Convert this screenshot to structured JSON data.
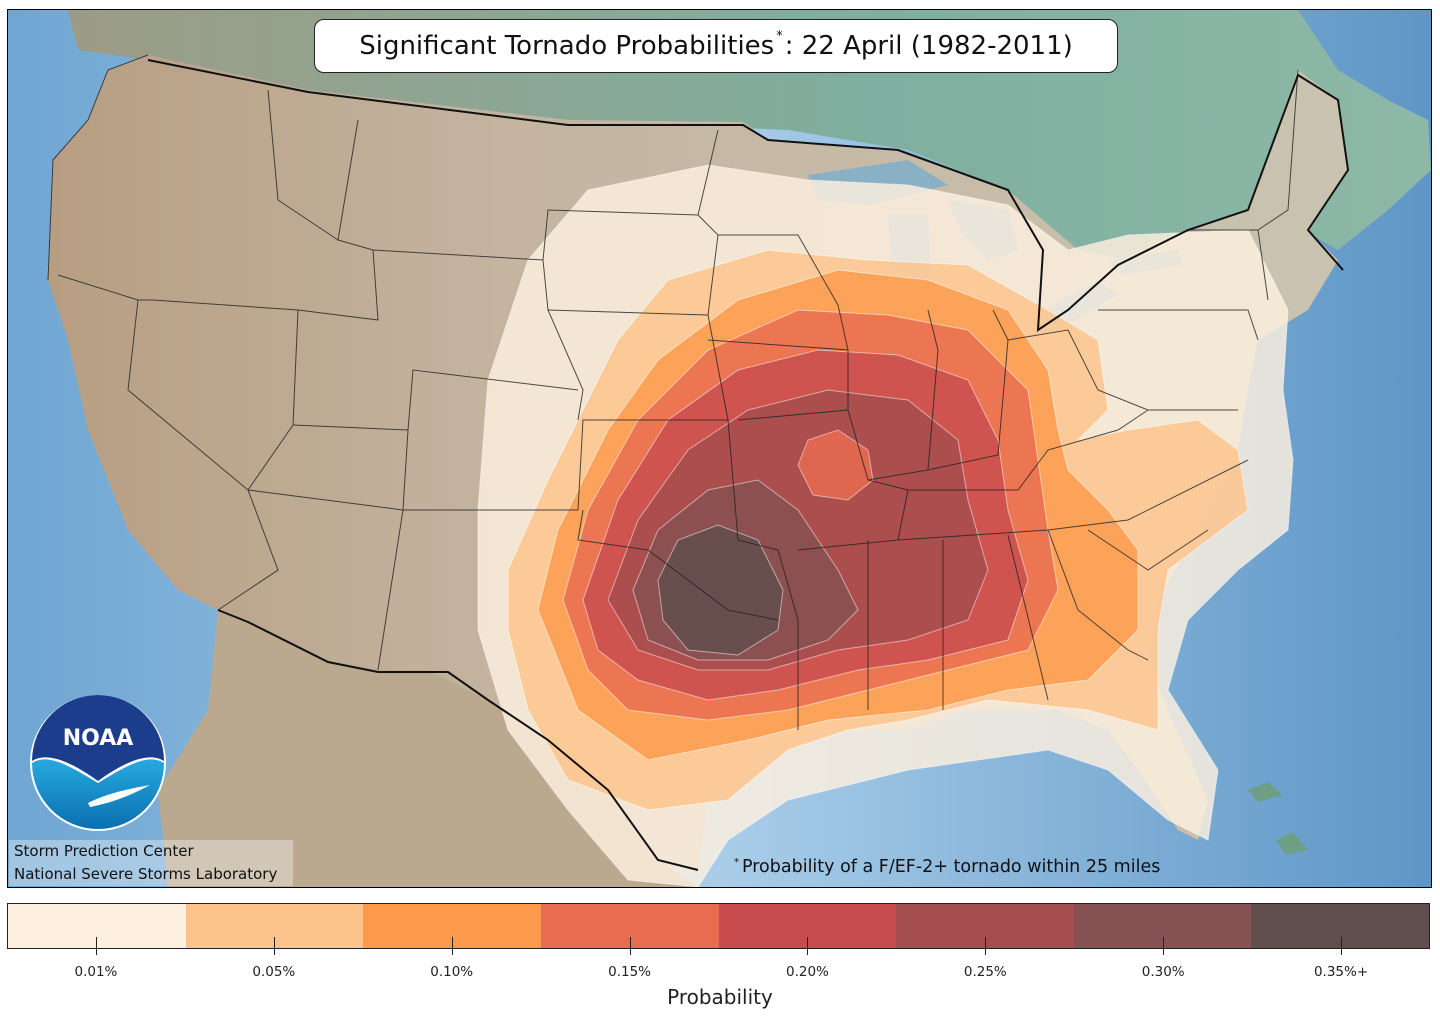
{
  "title": {
    "text_main": "Significant Tornado Probabilities",
    "sup": "*",
    "text_rest": ": 22 April (1982-2011)"
  },
  "credits": {
    "line1": "Storm Prediction Center",
    "line2": "National Severe Storms Laboratory"
  },
  "logo": {
    "text": "NOAA",
    "icon": "noaa-logo-icon"
  },
  "footnote": {
    "sup": "*",
    "text": "Probability of a F/EF-2+ tornado within 25 miles"
  },
  "colorbar": {
    "label": "Probability",
    "levels": [
      {
        "label": "0.01%",
        "color": "#FEF0DF"
      },
      {
        "label": "0.05%",
        "color": "#FDC38A"
      },
      {
        "label": "0.10%",
        "color": "#FD9A4C"
      },
      {
        "label": "0.15%",
        "color": "#E86C50"
      },
      {
        "label": "0.20%",
        "color": "#C84C4E"
      },
      {
        "label": "0.25%",
        "color": "#A44D4E"
      },
      {
        "label": "0.30%",
        "color": "#865152"
      },
      {
        "label": "0.35%+",
        "color": "#614E4E"
      }
    ]
  },
  "colors": {
    "ocean": "#7AAED6",
    "land": "#BFB4A0",
    "canada": "#8FB3A6",
    "border": "#111111"
  }
}
